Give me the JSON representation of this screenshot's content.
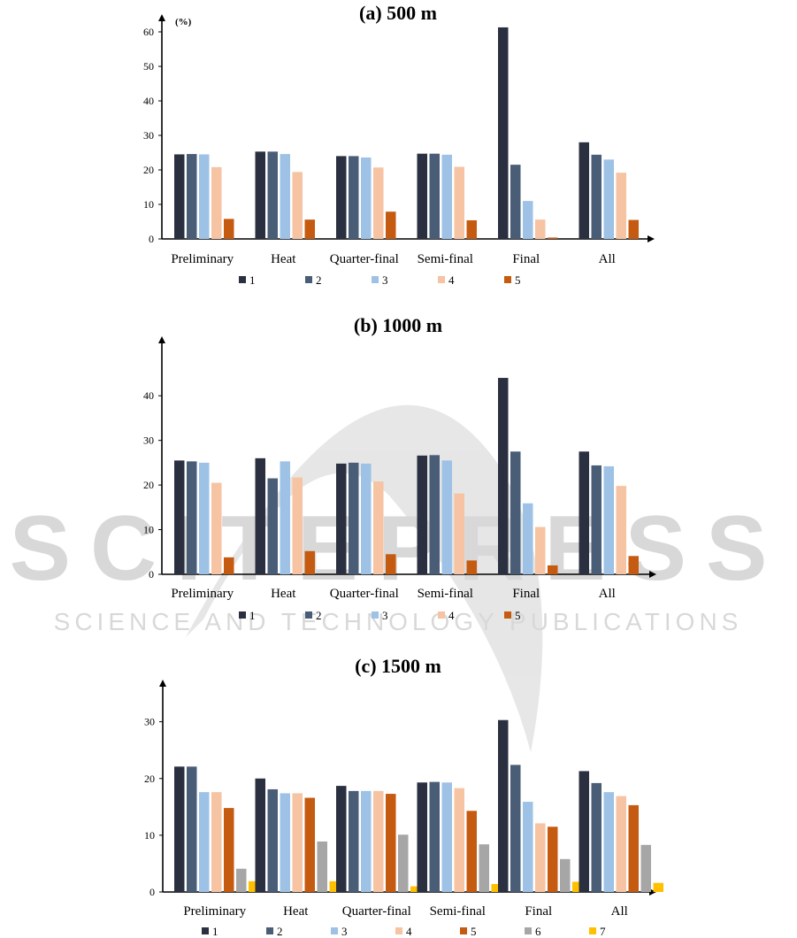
{
  "watermark": {
    "logo_text": "SCITEPRESS",
    "tagline": "SCIENCE AND TECHNOLOGY PUBLICATIONS"
  },
  "chart_data": [
    {
      "type": "bar",
      "title": "(a)   500 m",
      "unit_label": "(%)",
      "categories": [
        "Preliminary",
        "Heat",
        "Quarter-final",
        "Semi-final",
        "Final",
        "All"
      ],
      "ylim": [
        0,
        60
      ],
      "yticks": [
        0,
        10,
        20,
        30,
        40,
        50,
        60
      ],
      "grid": false,
      "legend_position": "bottom",
      "series": [
        {
          "name": "1",
          "color": "#2a3040",
          "values": [
            24.5,
            25.3,
            24.0,
            24.7,
            61.3,
            28.0
          ]
        },
        {
          "name": "2",
          "color": "#4a5d77",
          "values": [
            24.6,
            25.3,
            24.0,
            24.7,
            21.5,
            24.4
          ]
        },
        {
          "name": "3",
          "color": "#9dc2e6",
          "values": [
            24.5,
            24.6,
            23.6,
            24.4,
            11.0,
            23.0
          ]
        },
        {
          "name": "4",
          "color": "#f6c3a3",
          "values": [
            20.8,
            19.4,
            20.7,
            20.9,
            5.6,
            19.2
          ]
        },
        {
          "name": "5",
          "color": "#c55a11",
          "values": [
            5.8,
            5.6,
            7.9,
            5.4,
            0.4,
            5.5
          ]
        }
      ]
    },
    {
      "type": "bar",
      "title": "(b)    1000 m",
      "categories": [
        "Preliminary",
        "Heat",
        "Quarter-final",
        "Semi-final",
        "Final",
        "All"
      ],
      "ylim": [
        0,
        45
      ],
      "yticks": [
        0,
        10,
        20,
        30,
        40
      ],
      "grid": false,
      "legend_position": "bottom",
      "series": [
        {
          "name": "1",
          "color": "#2a3040",
          "values": [
            25.5,
            26.0,
            24.8,
            26.6,
            44.0,
            27.5
          ]
        },
        {
          "name": "2",
          "color": "#4a5d77",
          "values": [
            25.3,
            21.5,
            25.0,
            26.7,
            27.5,
            24.4
          ]
        },
        {
          "name": "3",
          "color": "#9dc2e6",
          "values": [
            25.0,
            25.3,
            24.8,
            25.5,
            15.9,
            24.2
          ]
        },
        {
          "name": "4",
          "color": "#f6c3a3",
          "values": [
            20.5,
            21.7,
            20.8,
            18.1,
            10.6,
            19.8
          ]
        },
        {
          "name": "5",
          "color": "#c55a11",
          "values": [
            3.8,
            5.2,
            4.5,
            3.1,
            2.0,
            4.1
          ]
        }
      ]
    },
    {
      "type": "bar",
      "title": "(c)    1500 m",
      "categories": [
        "Preliminary",
        "Heat",
        "Quarter-final",
        "Semi-final",
        "Final",
        "All"
      ],
      "ylim": [
        0,
        34
      ],
      "yticks": [
        0,
        10,
        20,
        30
      ],
      "grid": false,
      "legend_position": "bottom",
      "series": [
        {
          "name": "1",
          "color": "#2a3040",
          "values": [
            22.1,
            20.0,
            18.7,
            19.3,
            30.3,
            21.3
          ]
        },
        {
          "name": "2",
          "color": "#4a5d77",
          "values": [
            22.1,
            18.1,
            17.8,
            19.4,
            22.4,
            19.2
          ]
        },
        {
          "name": "3",
          "color": "#9dc2e6",
          "values": [
            17.6,
            17.4,
            17.8,
            19.3,
            15.9,
            17.6
          ]
        },
        {
          "name": "4",
          "color": "#f6c3a3",
          "values": [
            17.6,
            17.4,
            17.8,
            18.3,
            12.1,
            16.9
          ]
        },
        {
          "name": "5",
          "color": "#c55a11",
          "values": [
            14.8,
            16.6,
            17.3,
            14.3,
            11.5,
            15.3
          ]
        },
        {
          "name": "6",
          "color": "#a6a6a6",
          "values": [
            4.1,
            8.9,
            10.1,
            8.4,
            5.8,
            8.3
          ]
        },
        {
          "name": "7",
          "color": "#ffc000",
          "values": [
            1.9,
            1.9,
            1.0,
            1.4,
            1.8,
            1.6
          ]
        }
      ]
    }
  ]
}
